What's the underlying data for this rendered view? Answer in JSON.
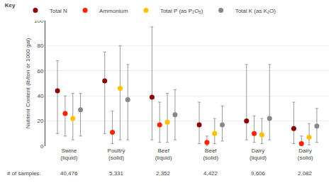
{
  "chart_data": {
    "type": "scatter",
    "categories": [
      "Swine\n(liquid)",
      "Poultry\n(solid)",
      "Beef\n(liquid)",
      "Beef\n(solid)",
      "Dairy\n(liquid)",
      "Dairy\n(solid)"
    ],
    "ylabel": "Nutrient Content (lb/ton or 1000 gal)",
    "ylim": [
      0,
      100
    ],
    "yticks": [
      0,
      20,
      40,
      60,
      80,
      100
    ],
    "grid": true,
    "legend": "top",
    "legend_title": "Key",
    "samples_label": "# of samples:",
    "samples": [
      "40,476",
      "5,331",
      "2,352",
      "4,422",
      "9,606",
      "2,082"
    ],
    "series": [
      {
        "name": "Total N",
        "color": "#8B0000",
        "values": [
          44,
          52,
          39,
          17,
          20,
          14
        ],
        "low": [
          10,
          10,
          5,
          2,
          5,
          2
        ],
        "high": [
          68,
          75,
          95,
          35,
          65,
          35
        ]
      },
      {
        "name": "Ammonium",
        "color": "#FF2200",
        "values": [
          26,
          11,
          17,
          3,
          10,
          2
        ],
        "low": [
          8,
          2,
          3,
          0,
          3,
          0
        ],
        "high": [
          40,
          28,
          35,
          8,
          24,
          8
        ]
      },
      {
        "name": "Total P (as P₂O₅)",
        "color": "#FFC000",
        "values": [
          22,
          46,
          19,
          10,
          9,
          7
        ],
        "low": [
          5,
          5,
          3,
          2,
          2,
          1
        ],
        "high": [
          42,
          80,
          42,
          22,
          22,
          18
        ]
      },
      {
        "name": "Total K (as K₂O)",
        "color": "#888888",
        "values": [
          29,
          37,
          25,
          17,
          22,
          16
        ],
        "low": [
          8,
          5,
          5,
          4,
          5,
          3
        ],
        "high": [
          42,
          65,
          45,
          32,
          65,
          30
        ]
      }
    ]
  }
}
